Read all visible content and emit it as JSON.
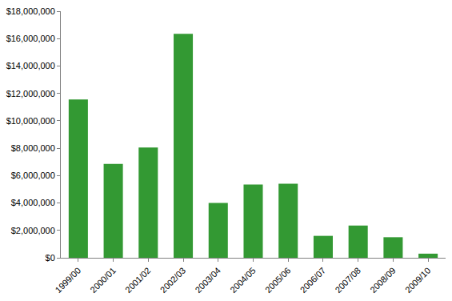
{
  "chart_data": {
    "type": "bar",
    "categories": [
      "1999/00",
      "2000/01",
      "2001/02",
      "2002/03",
      "2003/04",
      "2004/05",
      "2005/06",
      "2006/07",
      "2007/08",
      "2008/09",
      "2009/10"
    ],
    "values": [
      11550000,
      6850000,
      8050000,
      16350000,
      4000000,
      5350000,
      5400000,
      1600000,
      2350000,
      1500000,
      300000
    ],
    "color": "#339933",
    "ylim": [
      0,
      18000000
    ],
    "yticks": [
      {
        "value": 0,
        "label": "$0"
      },
      {
        "value": 2000000,
        "label": "$2,000,000"
      },
      {
        "value": 4000000,
        "label": "$4,000,000"
      },
      {
        "value": 6000000,
        "label": "$6,000,000"
      },
      {
        "value": 8000000,
        "label": "$8,000,000"
      },
      {
        "value": 10000000,
        "label": "$10,000,000"
      },
      {
        "value": 12000000,
        "label": "$12,000,000"
      },
      {
        "value": 14000000,
        "label": "$14,000,000"
      },
      {
        "value": 16000000,
        "label": "$16,000,000"
      },
      {
        "value": 18000000,
        "label": "$18,000,000"
      }
    ],
    "grid": false
  }
}
